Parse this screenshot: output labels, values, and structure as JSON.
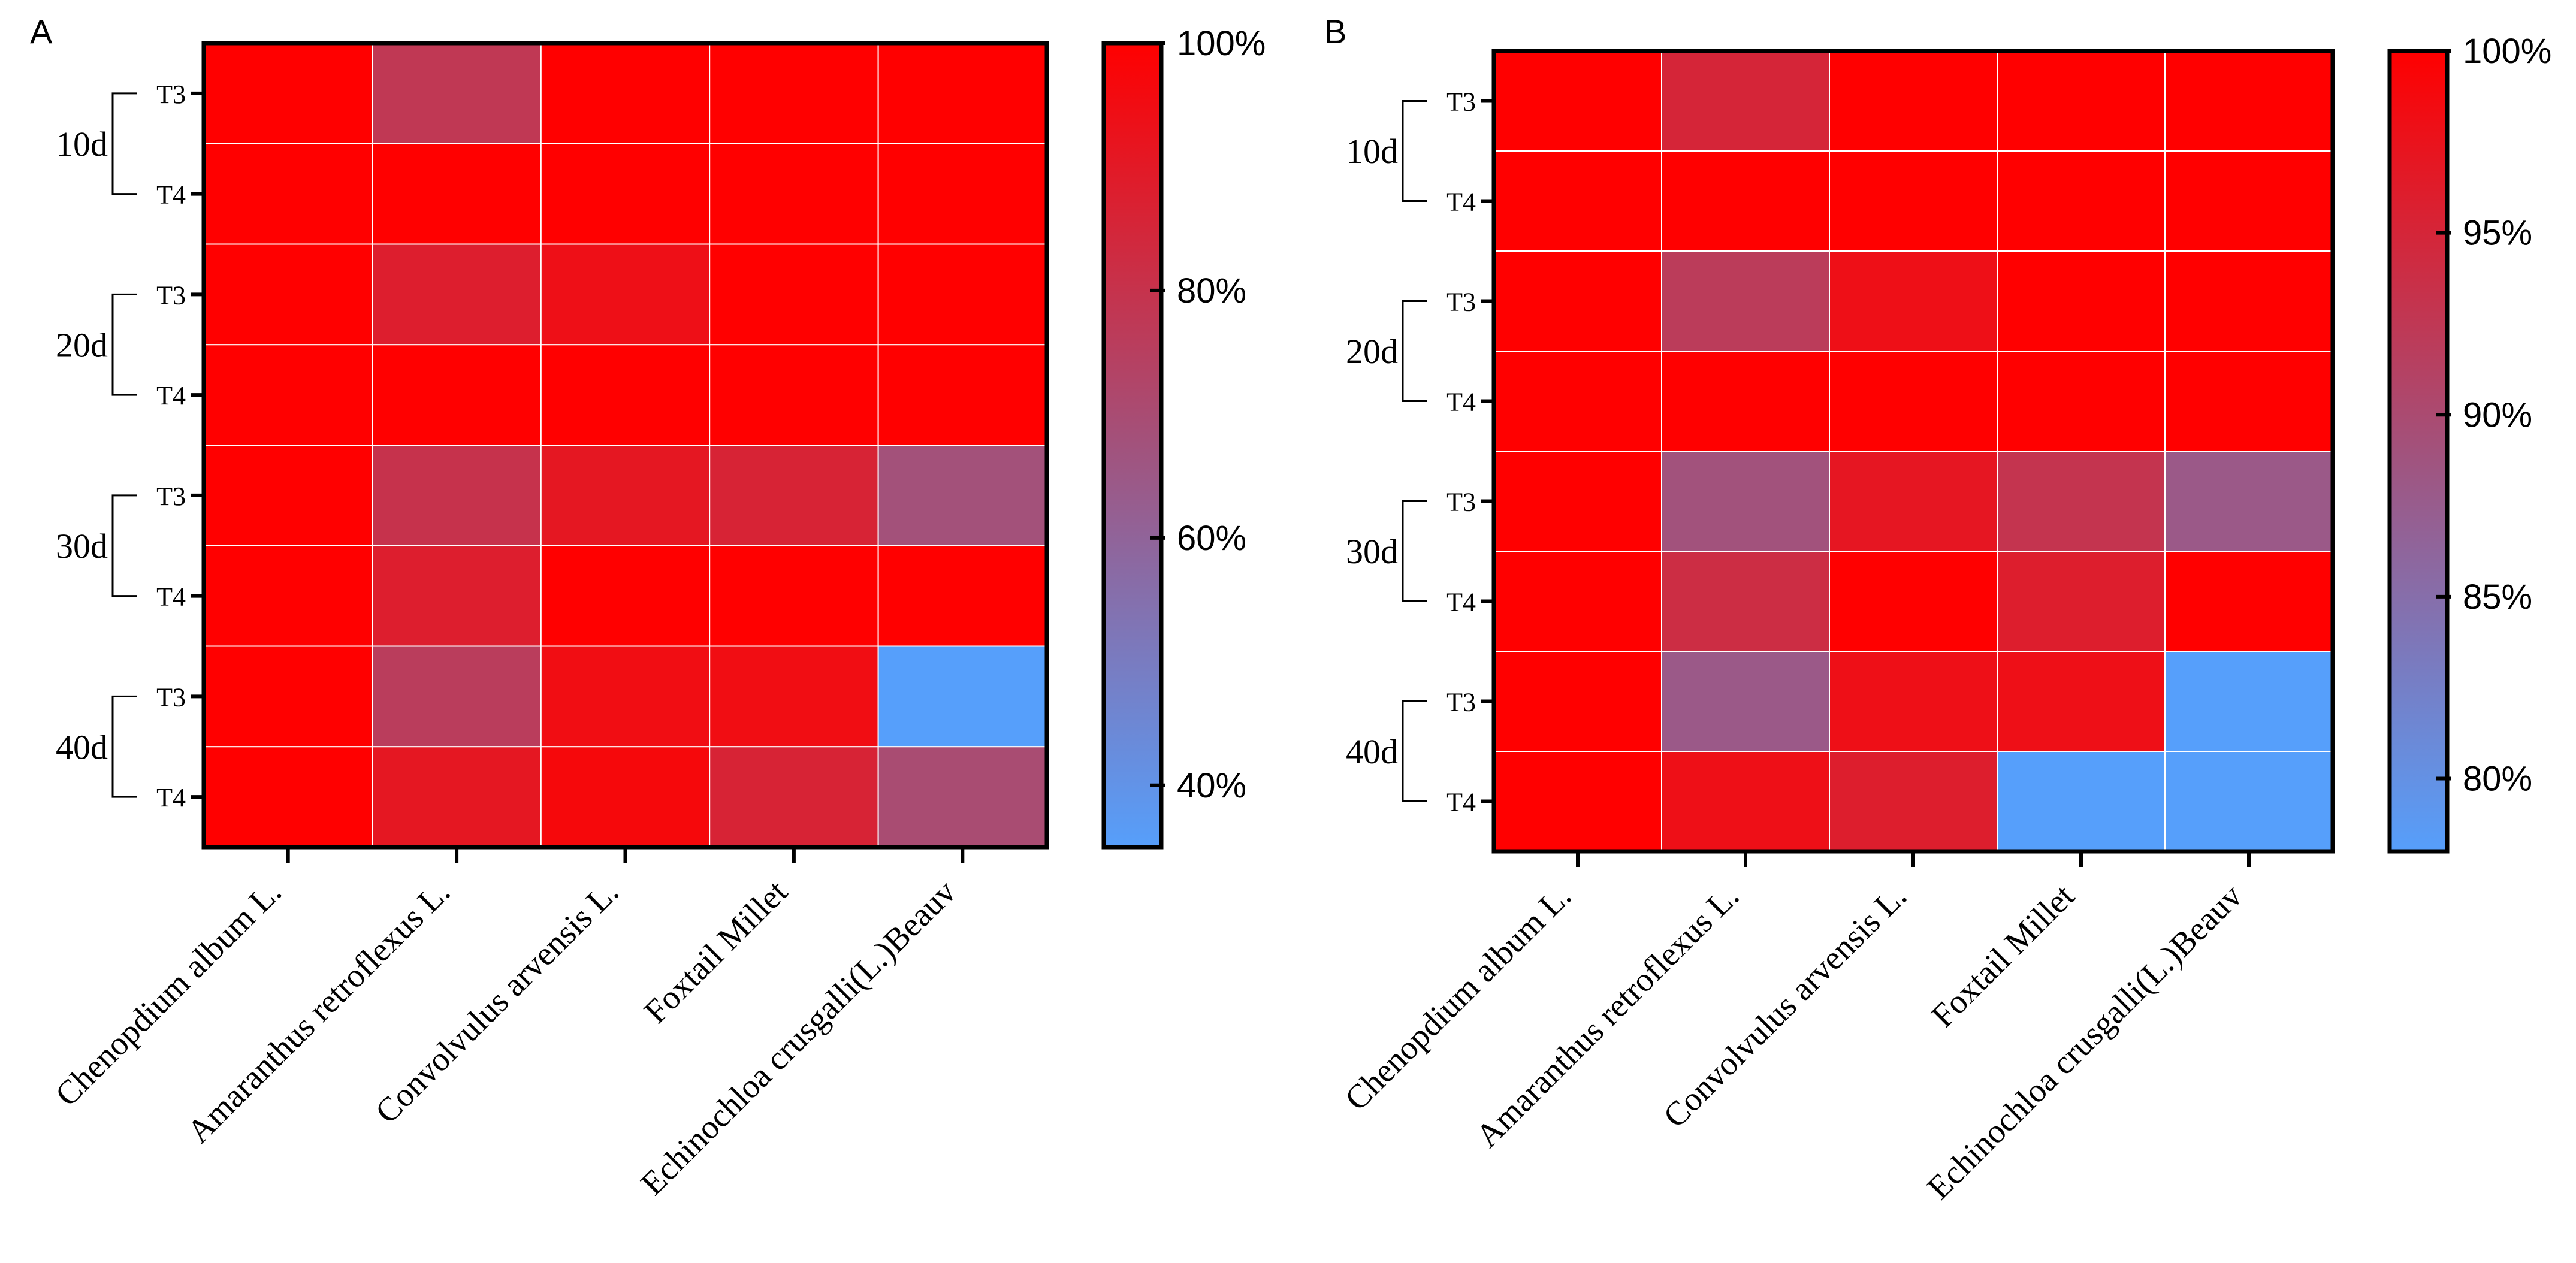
{
  "chart_data": [
    {
      "type": "heatmap",
      "panel": "A",
      "columns": [
        "Chenopdium album L.",
        "Amaranthus retroflexus L.",
        "Convolvulus arvensis L.",
        "Foxtail Millet",
        "Echinochloa crusgalli(L.)Beauv"
      ],
      "groups": [
        {
          "label": "10d",
          "rows": [
            "T3",
            "T4"
          ]
        },
        {
          "label": "20d",
          "rows": [
            "T3",
            "T4"
          ]
        },
        {
          "label": "30d",
          "rows": [
            "T3",
            "T4"
          ]
        },
        {
          "label": "40d",
          "rows": [
            "T3",
            "T4"
          ]
        }
      ],
      "values": [
        [
          100,
          78,
          100,
          100,
          100
        ],
        [
          100,
          100,
          100,
          100,
          100
        ],
        [
          100,
          88,
          94,
          100,
          100
        ],
        [
          100,
          100,
          100,
          100,
          100
        ],
        [
          100,
          80,
          91,
          86,
          68
        ],
        [
          100,
          88,
          100,
          100,
          100
        ],
        [
          100,
          76,
          95,
          95,
          35
        ],
        [
          100,
          91,
          97,
          86,
          70
        ]
      ],
      "colorbar": {
        "min": 35,
        "max": 100,
        "ticks": [
          40,
          60,
          80,
          100
        ],
        "tick_labels": [
          "40%",
          "60%",
          "80%",
          "100%"
        ],
        "low_color": "#569ffb",
        "mid_color": "#a2527c",
        "high_color": "#ff0000"
      }
    },
    {
      "type": "heatmap",
      "panel": "B",
      "columns": [
        "Chenopdium album L.",
        "Amaranthus retroflexus L.",
        "Convolvulus arvensis L.",
        "Foxtail Millet",
        "Echinochloa crusgalli(L.)Beauv"
      ],
      "groups": [
        {
          "label": "10d",
          "rows": [
            "T3",
            "T4"
          ]
        },
        {
          "label": "20d",
          "rows": [
            "T3",
            "T4"
          ]
        },
        {
          "label": "30d",
          "rows": [
            "T3",
            "T4"
          ]
        },
        {
          "label": "40d",
          "rows": [
            "T3",
            "T4"
          ]
        }
      ],
      "values": [
        [
          100,
          95,
          100,
          100,
          100
        ],
        [
          100,
          100,
          100,
          100,
          100
        ],
        [
          100,
          92,
          98,
          100,
          100
        ],
        [
          100,
          100,
          100,
          100,
          100
        ],
        [
          100,
          89,
          97,
          93,
          88
        ],
        [
          100,
          94,
          100,
          96,
          100
        ],
        [
          100,
          88,
          98,
          98,
          78
        ],
        [
          100,
          98,
          96,
          78,
          78
        ]
      ],
      "colorbar": {
        "min": 78,
        "max": 100,
        "ticks": [
          80,
          85,
          90,
          95,
          100
        ],
        "tick_labels": [
          "80%",
          "85%",
          "90%",
          "95%",
          "100%"
        ],
        "low_color": "#569ffb",
        "mid_color": "#a2527c",
        "high_color": "#ff0000"
      }
    }
  ]
}
